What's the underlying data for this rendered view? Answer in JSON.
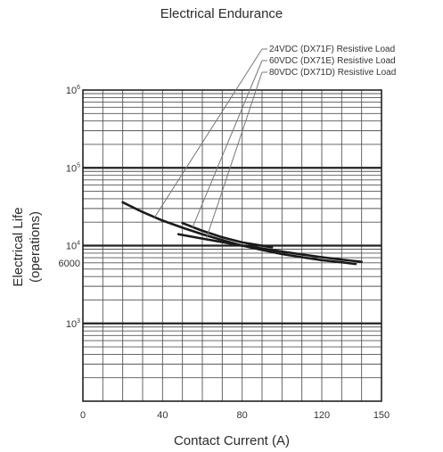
{
  "chart_data": {
    "type": "line",
    "title": "Electrical Endurance",
    "xlabel": "Contact Current (A)",
    "ylabel": [
      "Electrical Life",
      "(operations)"
    ],
    "xlim": [
      0,
      150
    ],
    "ylim": [
      100,
      1000000
    ],
    "y_scale": "log",
    "grid": true,
    "legend": "top-right",
    "x_ticks": [
      {
        "value": 0,
        "label": "0"
      },
      {
        "value": 40,
        "label": "40"
      },
      {
        "value": 80,
        "label": "80"
      },
      {
        "value": 120,
        "label": "120"
      },
      {
        "value": 150,
        "label": "150"
      }
    ],
    "y_ticks": [
      {
        "value": 1000000,
        "base": "10",
        "exp": "6"
      },
      {
        "value": 100000,
        "base": "10",
        "exp": "5"
      },
      {
        "value": 10000,
        "base": "10",
        "exp": "4"
      },
      {
        "value": 1000,
        "base": "10",
        "exp": "3"
      }
    ],
    "y_extra_ticks": [
      {
        "value": 6000,
        "label": "6000"
      }
    ],
    "series": [
      {
        "name": "24VDC (DX71F) Resistive Load",
        "x": [
          20,
          30,
          40,
          50,
          60,
          70,
          80,
          90,
          100,
          110,
          120,
          130,
          137
        ],
        "y": [
          36000,
          27000,
          21000,
          17000,
          14000,
          11800,
          10000,
          8800,
          7800,
          7100,
          6500,
          6100,
          5800
        ],
        "pointer_at": [
          36,
          23000
        ]
      },
      {
        "name": "60VDC (DX71E) Resistive Load",
        "x": [
          50,
          60,
          70,
          80,
          95
        ],
        "y": [
          19500,
          15500,
          12800,
          11000,
          9500
        ],
        "pointer_at": [
          55,
          17000
        ]
      },
      {
        "name": "80VDC (DX71D) Resistive Load",
        "x": [
          48,
          60,
          70,
          80,
          90,
          100,
          110,
          120,
          130,
          140
        ],
        "y": [
          14000,
          12300,
          11100,
          10000,
          9200,
          8400,
          7700,
          7100,
          6600,
          6200
        ],
        "pointer_at": [
          62,
          12300
        ]
      }
    ]
  }
}
